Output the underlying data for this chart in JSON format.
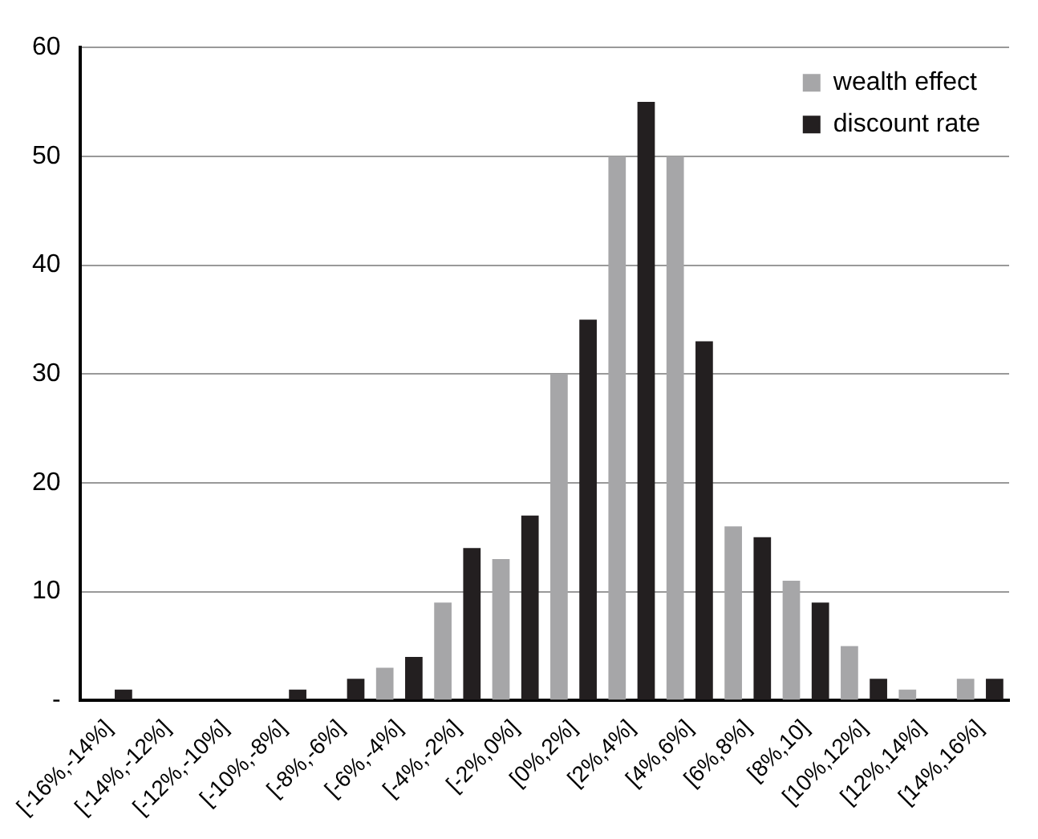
{
  "chart_data": {
    "type": "bar",
    "categories": [
      "[-16%,-14%]",
      "[-14%,-12%]",
      "[-12%,-10%]",
      "[-10%,-8%]",
      "[-8%,-6%]",
      "[-6%,-4%]",
      "[-4%,-2%]",
      "[-2%,0%]",
      "[0%,2%]",
      "[2%,4%]",
      "[4%,6%]",
      "[6%,8%]",
      "[8%,10]",
      "[10%,12%]",
      "[12%,14%]",
      "[14%,16%]"
    ],
    "series": [
      {
        "name": "wealth effect",
        "color": "#a6a6a8",
        "values": [
          0,
          0,
          0,
          0,
          0,
          3,
          9,
          13,
          30,
          50,
          50,
          16,
          11,
          5,
          1,
          2
        ]
      },
      {
        "name": "discount rate",
        "color": "#231f20",
        "values": [
          1,
          0,
          0,
          1,
          2,
          4,
          14,
          17,
          35,
          55,
          33,
          15,
          9,
          2,
          0,
          2
        ]
      }
    ],
    "ylim": [
      0,
      60
    ],
    "yticks": [
      {
        "value": 0,
        "label": "-"
      },
      10,
      20,
      30,
      40,
      50,
      60
    ],
    "grid": "y",
    "legend": "top right"
  }
}
